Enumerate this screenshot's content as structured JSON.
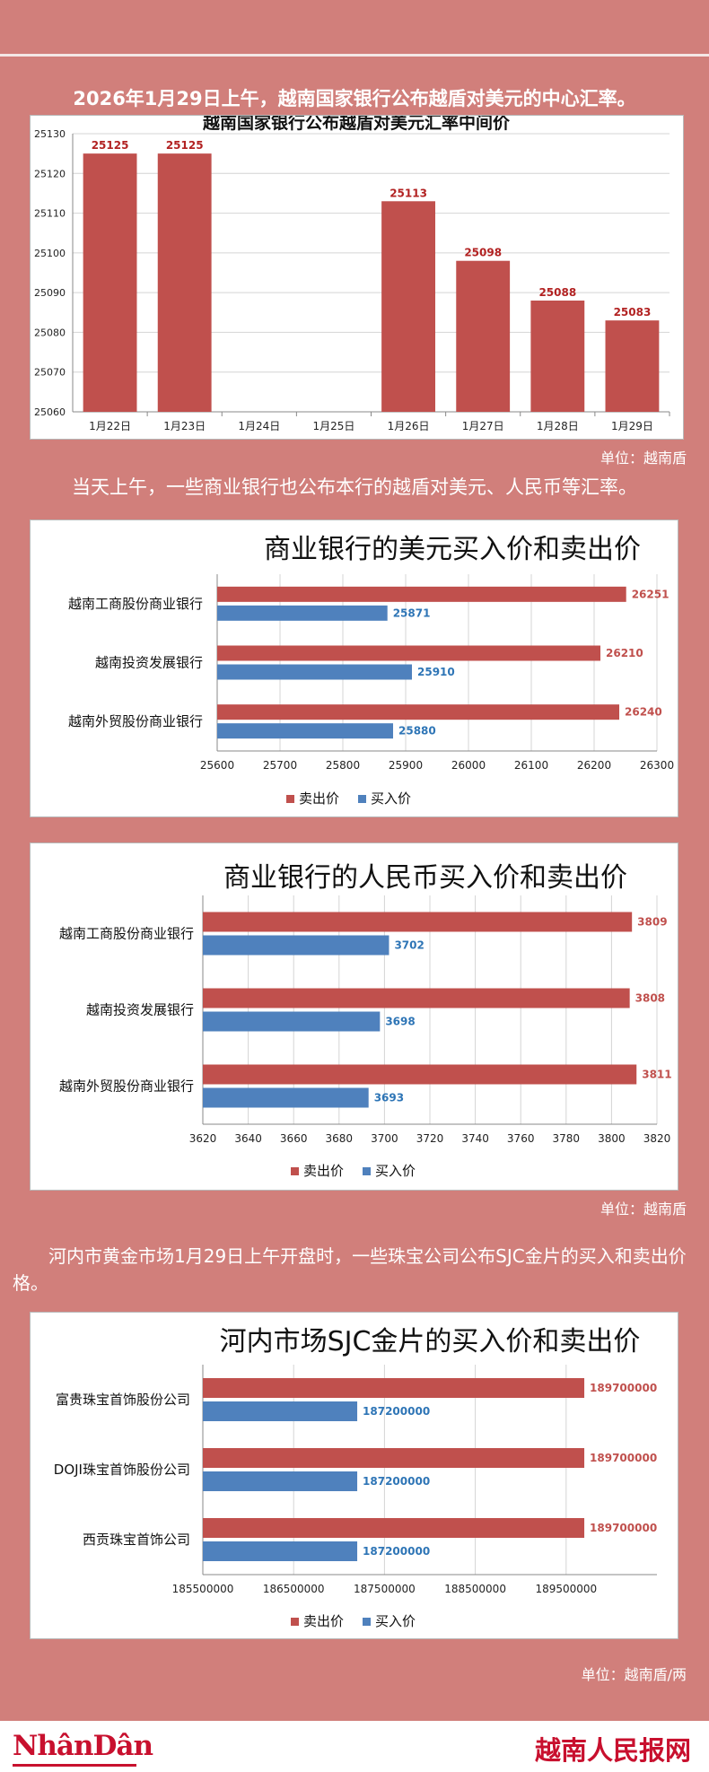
{
  "intro1": "2026年1月29日上午，越南国家银行公布越盾对美元的中心汇率。",
  "unit1": "单位：越南盾",
  "intro2": "当天上午，一些商业银行也公布本行的越盾对美元、人民币等汇率。",
  "unit2": "单位：越南盾",
  "paragraph3": "河内市黄金市场1月29日上午开盘时，一些珠宝公司公布SJC金片的买入和卖出价格。",
  "unit3": "单位：越南盾/两",
  "footer": {
    "logo": "NhânDân",
    "site": "越南人民报网"
  },
  "colors": {
    "sell": "#c0504d",
    "buy": "#4f81bd",
    "sell_label": "#c0504d",
    "buy_label": "#2e75b6",
    "background": "#d17f7b"
  },
  "chart_data": [
    {
      "type": "bar",
      "title": "越南国家银行公布越盾对美元汇率中间价",
      "categories": [
        "1月22日",
        "1月23日",
        "1月24日",
        "1月25日",
        "1月26日",
        "1月27日",
        "1月28日",
        "1月29日"
      ],
      "values": [
        25125,
        25125,
        null,
        null,
        25113,
        25098,
        25088,
        25083
      ],
      "ylim": [
        25060,
        25130
      ],
      "yticks": [
        25060,
        25070,
        25080,
        25090,
        25100,
        25110,
        25120,
        25130
      ],
      "grid": true
    },
    {
      "type": "bar",
      "orientation": "horizontal",
      "title": "商业银行的美元买入价和卖出价",
      "categories": [
        "越南工商股份商业银行",
        "越南投资发展银行",
        "越南外贸股份商业银行"
      ],
      "series": [
        {
          "name": "卖出价",
          "values": [
            26251,
            26210,
            26240
          ]
        },
        {
          "name": "买入价",
          "values": [
            25871,
            25910,
            25880
          ]
        }
      ],
      "xlim": [
        25600,
        26300
      ],
      "xticks": [
        25600,
        25700,
        25800,
        25900,
        26000,
        26100,
        26200,
        26300
      ],
      "legend": "bottom",
      "grid": true
    },
    {
      "type": "bar",
      "orientation": "horizontal",
      "title": "商业银行的人民币买入价和卖出价",
      "categories": [
        "越南工商股份商业银行",
        "越南投资发展银行",
        "越南外贸股份商业银行"
      ],
      "series": [
        {
          "name": "卖出价",
          "values": [
            3809,
            3808,
            3811
          ]
        },
        {
          "name": "买入价",
          "values": [
            3702,
            3698,
            3693
          ]
        }
      ],
      "xlim": [
        3620,
        3820
      ],
      "xticks": [
        3620,
        3640,
        3660,
        3680,
        3700,
        3720,
        3740,
        3760,
        3780,
        3800,
        3820
      ],
      "legend": "bottom",
      "grid": true
    },
    {
      "type": "bar",
      "orientation": "horizontal",
      "title": "河内市场SJC金片的买入价和卖出价",
      "categories": [
        "富贵珠宝首饰股份公司",
        "DOJI珠宝首饰股份公司",
        "西贡珠宝首饰公司"
      ],
      "series": [
        {
          "name": "卖出价",
          "values": [
            189700000,
            189700000,
            189700000
          ]
        },
        {
          "name": "买入价",
          "values": [
            187200000,
            187200000,
            187200000
          ]
        }
      ],
      "xlim": [
        185500000,
        190500000
      ],
      "xticks": [
        185500000,
        186500000,
        187500000,
        188500000,
        189500000
      ],
      "legend": "bottom",
      "grid": true
    }
  ]
}
